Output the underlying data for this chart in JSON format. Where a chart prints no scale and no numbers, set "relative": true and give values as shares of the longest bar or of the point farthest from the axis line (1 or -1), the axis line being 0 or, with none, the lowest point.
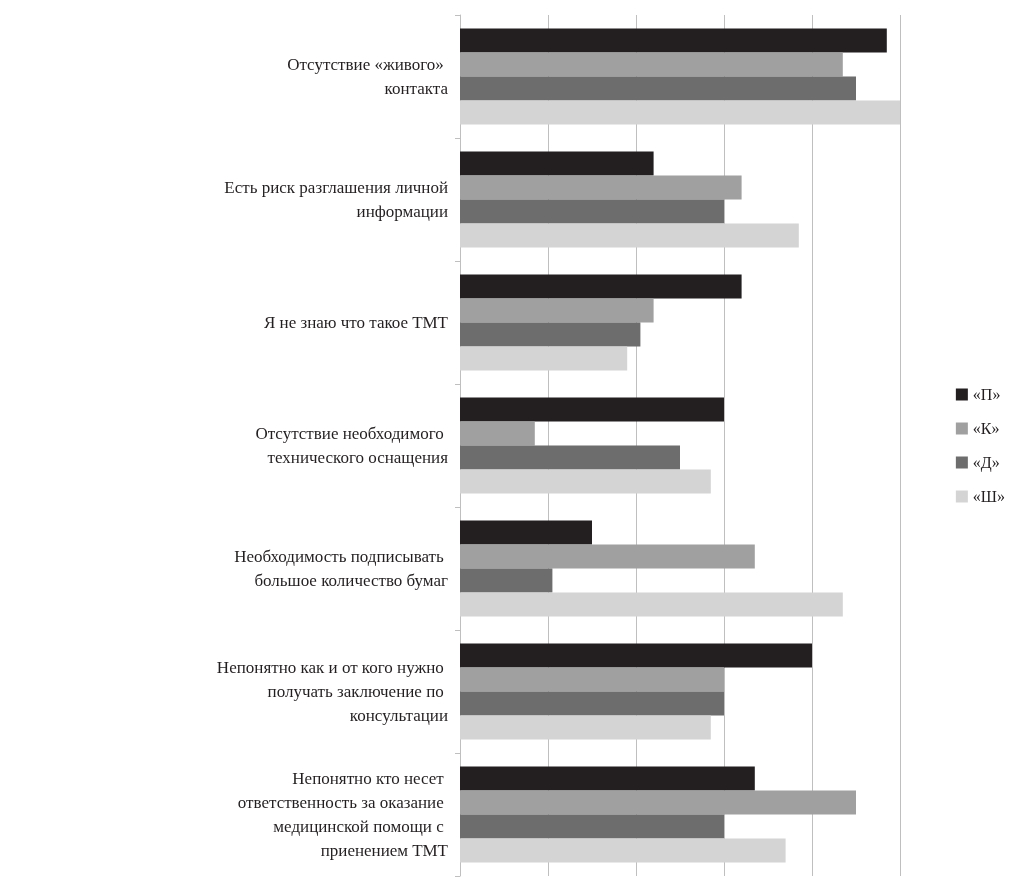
{
  "chart_data": {
    "type": "bar",
    "orientation": "horizontal",
    "relative": true,
    "grid": "x",
    "legend": "right",
    "categories": [
      "Отсутствие «живого» контакта",
      "Есть риск разглашения личной информации",
      "Я не знаю что такое ТМТ",
      "Отсутствие необходимого технического оснащения",
      "Необходимость подписывать большое количество бумаг",
      "Непонятно как и от кого нужно получать заключение по консультации",
      "Непонятно кто несет ответственность за оказание медицинской помощи с приенением ТМТ"
    ],
    "series": [
      {
        "name": "«П»",
        "color": "#231f20",
        "values": [
          0.97,
          0.44,
          0.64,
          0.6,
          0.3,
          0.8,
          0.67
        ]
      },
      {
        "name": "«К»",
        "color": "#a0a0a0",
        "values": [
          0.87,
          0.64,
          0.44,
          0.17,
          0.67,
          0.6,
          0.9
        ]
      },
      {
        "name": "«Д»",
        "color": "#6d6d6e",
        "values": [
          0.9,
          0.6,
          0.41,
          0.5,
          0.21,
          0.6,
          0.6
        ]
      },
      {
        "name": "«Ш»",
        "color": "#d4d4d4",
        "values": [
          1.0,
          0.77,
          0.38,
          0.57,
          0.87,
          0.57,
          0.74
        ]
      }
    ]
  }
}
